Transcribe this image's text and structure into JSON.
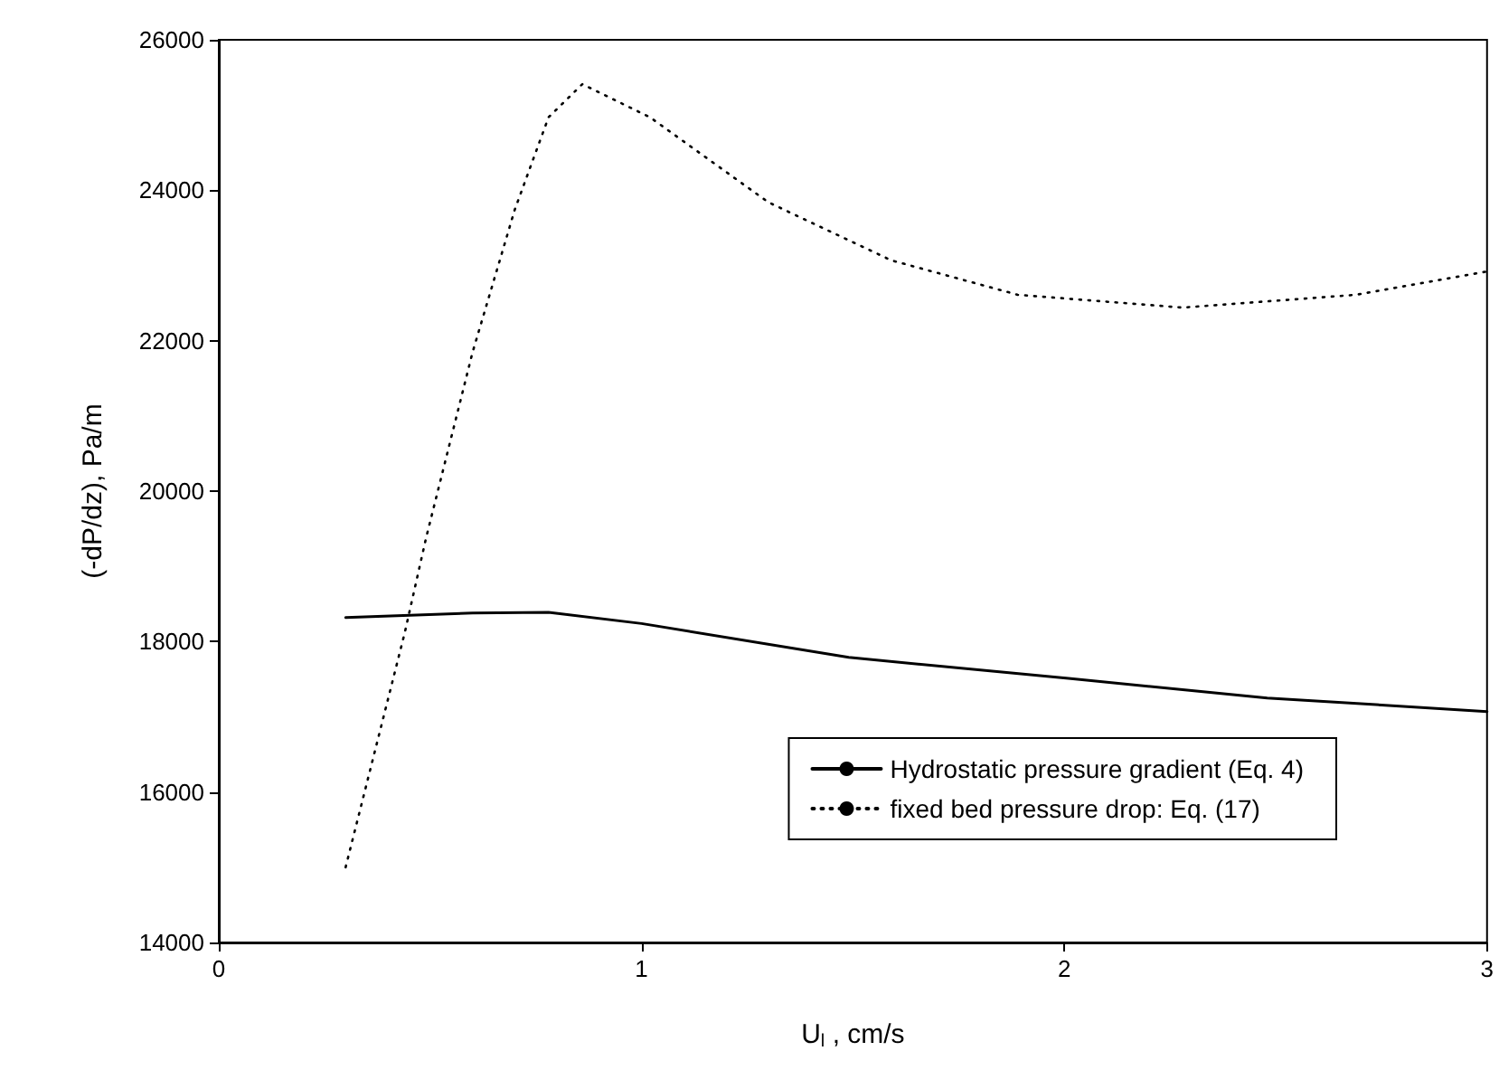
{
  "chart_data": {
    "type": "line",
    "xlabel": "U$_{l}$ , cm/s",
    "ylabel": "(-dP/dz), Pa/m",
    "series": [
      {
        "name": "Hydrostatic pressure gradient (Eq. 4)",
        "color": "#000000",
        "line_style": "solid",
        "x": [
          0.3,
          0.6,
          0.78,
          1.0,
          1.49,
          2.01,
          2.48,
          3.0
        ],
        "values": [
          18320,
          18380,
          18390,
          18240,
          17790,
          17510,
          17250,
          17070
        ]
      },
      {
        "name": "fixed bed pressure drop: Eq. (17)",
        "color": "#000000",
        "line_style": "dotted",
        "x": [
          0.3,
          0.44,
          0.49,
          0.6,
          0.7,
          0.78,
          0.86,
          1.02,
          1.3,
          1.59,
          1.89,
          2.28,
          2.69,
          3.0
        ],
        "values": [
          15000,
          18120,
          19370,
          21840,
          23740,
          24970,
          25410,
          24970,
          23840,
          23070,
          22610,
          22440,
          22610,
          22920
        ]
      }
    ],
    "xlim": [
      0,
      3
    ],
    "xticks": [
      0,
      1,
      2,
      3
    ],
    "ylim": [
      14000,
      26000
    ],
    "yticks": [
      14000,
      16000,
      18000,
      20000,
      22000,
      24000,
      26000
    ],
    "grid": false,
    "legend": "bottom right",
    "marker": "none"
  }
}
